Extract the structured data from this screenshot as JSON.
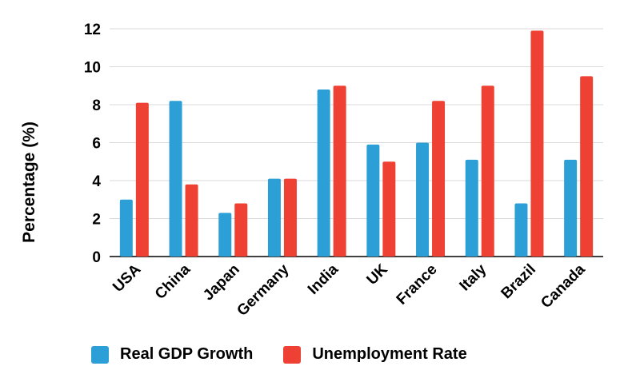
{
  "chart_data": {
    "type": "bar",
    "title": "",
    "xlabel": "",
    "ylabel": "Percentage (%)",
    "ylim": [
      0,
      12
    ],
    "yticks": [
      "0",
      "2",
      "4",
      "6",
      "8",
      "10",
      "12"
    ],
    "grid": true,
    "legend_position": "bottom",
    "categories": [
      "USA",
      "China",
      "Japan",
      "Germany",
      "India",
      "UK",
      "France",
      "Italy",
      "Brazil",
      "Canada"
    ],
    "series": [
      {
        "name": "Real GDP Growth",
        "color": "#2b9fd6",
        "values": [
          3.0,
          8.2,
          2.3,
          4.1,
          8.8,
          5.9,
          6.0,
          5.1,
          2.8,
          5.1
        ]
      },
      {
        "name": "Unemployment Rate",
        "color": "#ee4133",
        "values": [
          8.1,
          3.8,
          2.8,
          4.1,
          9.0,
          5.0,
          8.2,
          9.0,
          11.9,
          9.5
        ]
      }
    ]
  }
}
